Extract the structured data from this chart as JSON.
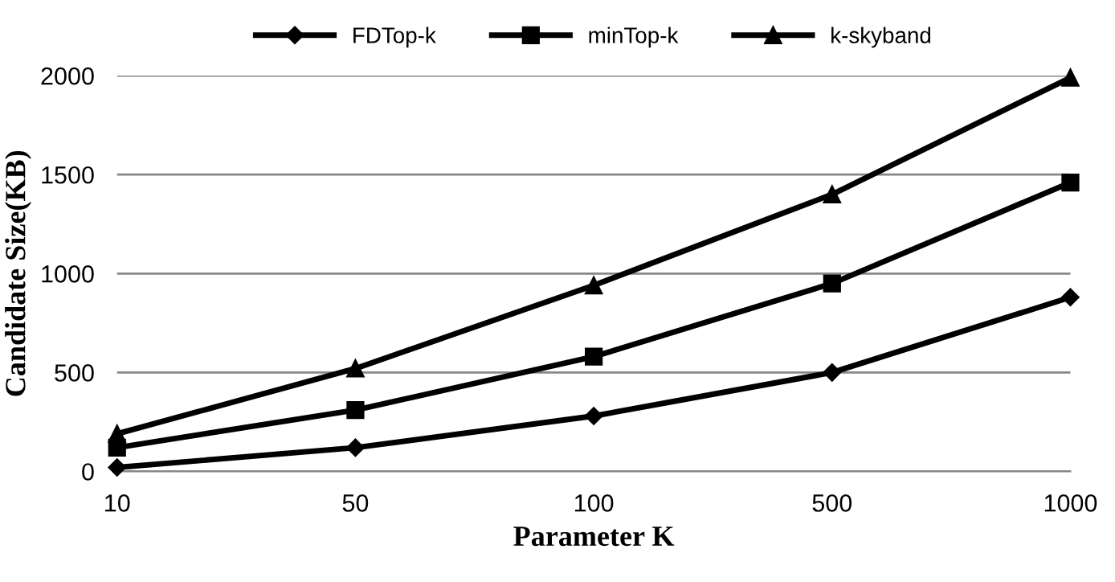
{
  "chart_data": {
    "type": "line",
    "xlabel": "Parameter K",
    "ylabel": "Candidate Size(KB)",
    "categories": [
      "10",
      "50",
      "100",
      "500",
      "1000"
    ],
    "series": [
      {
        "name": "FDTop-k",
        "color": "#000000",
        "marker": "diamond",
        "values": [
          20,
          120,
          280,
          500,
          880
        ]
      },
      {
        "name": "minTop-k",
        "color": "#000000",
        "marker": "square",
        "values": [
          120,
          310,
          580,
          950,
          1460
        ]
      },
      {
        "name": "k-skyband",
        "color": "#000000",
        "marker": "triangle",
        "values": [
          190,
          520,
          940,
          1400,
          1990
        ]
      }
    ],
    "ylim": [
      0,
      2000
    ],
    "yticks": [
      0,
      500,
      1000,
      1500,
      2000
    ],
    "grid": "y",
    "legend": "top",
    "line_style": "solid"
  }
}
